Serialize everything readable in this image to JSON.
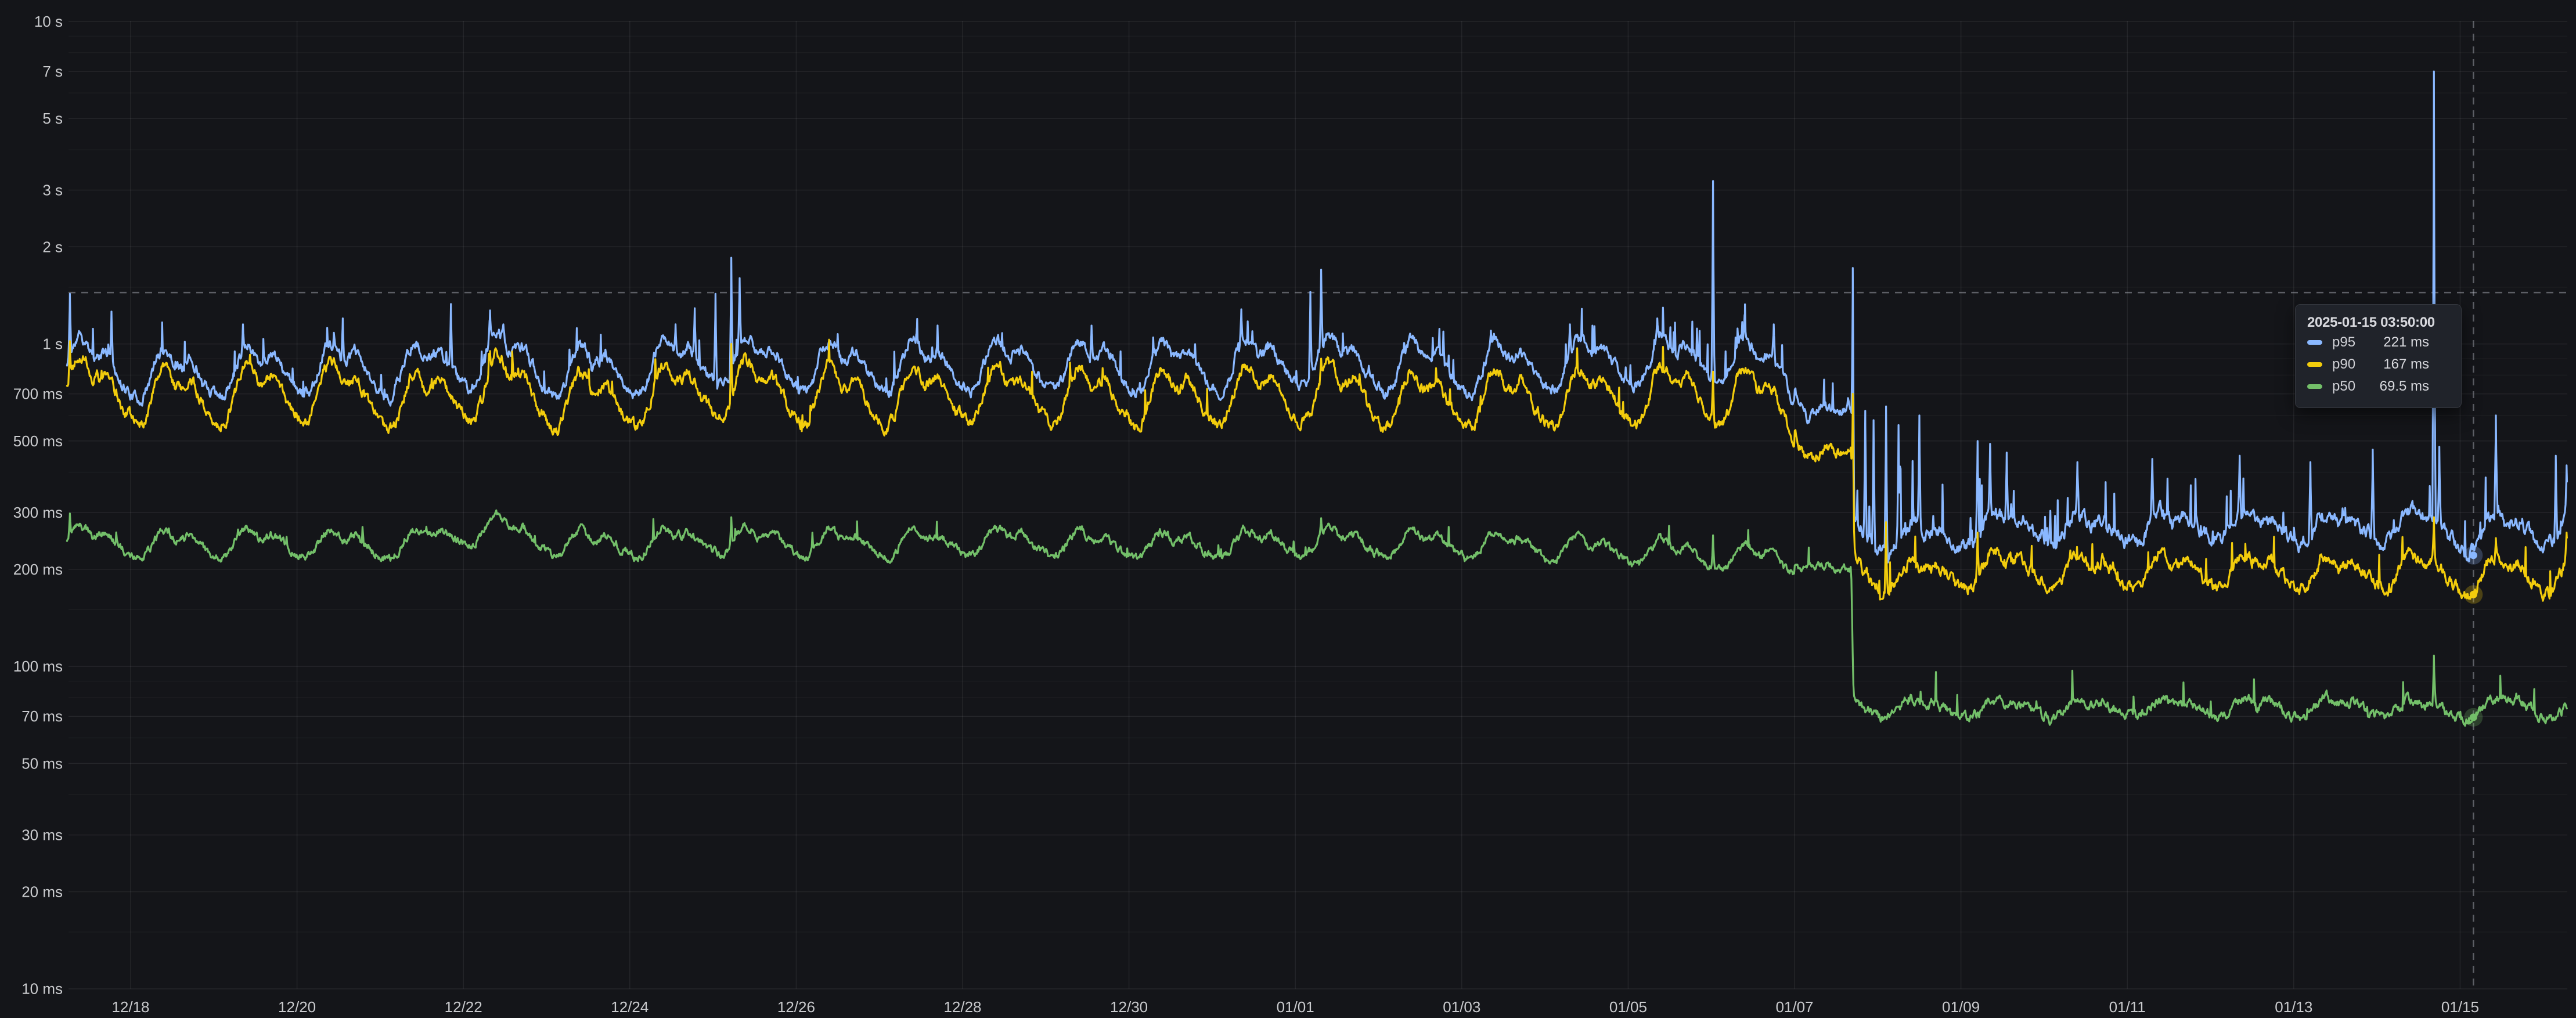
{
  "meta": {
    "app": "grafana-time-series-panel",
    "theme": "dark",
    "panel_kind": "latency-percentiles-log-chart"
  },
  "colors": {
    "background": "#141519",
    "grid_major": "rgba(204,204,220,0.085)",
    "grid_minor": "rgba(204,204,220,0.045)",
    "axis_text": "#C9CACD",
    "crosshair": "rgba(200,205,215,0.40)",
    "tooltip_bg": "#20232A",
    "tooltip_border": "#34373E",
    "tooltip_text": "#D6D7DC"
  },
  "tooltip": {
    "date": "2025-01-15 03:50:00",
    "rows": [
      {
        "label": "p95",
        "value": "221 ms",
        "color": "#8AB8FF"
      },
      {
        "label": "p90",
        "value": "167 ms",
        "color": "#F2CC0C"
      },
      {
        "label": "p50",
        "value": "69.5 ms",
        "color": "#73BF69"
      }
    ]
  },
  "chart_data": {
    "type": "line",
    "title": "",
    "xlabel": "",
    "ylabel": "",
    "x_axis": {
      "unit": "date",
      "epoch_label": "2024-12-17",
      "range_days": [
        0.235,
        30.29
      ],
      "ticks": [
        {
          "label": "12/18",
          "day": 1
        },
        {
          "label": "12/20",
          "day": 3
        },
        {
          "label": "12/22",
          "day": 5
        },
        {
          "label": "12/24",
          "day": 7
        },
        {
          "label": "12/26",
          "day": 9
        },
        {
          "label": "12/28",
          "day": 11
        },
        {
          "label": "12/30",
          "day": 13
        },
        {
          "label": "01/01",
          "day": 15
        },
        {
          "label": "01/03",
          "day": 17
        },
        {
          "label": "01/05",
          "day": 19
        },
        {
          "label": "01/07",
          "day": 21
        },
        {
          "label": "01/09",
          "day": 23
        },
        {
          "label": "01/11",
          "day": 25
        },
        {
          "label": "01/13",
          "day": 27
        },
        {
          "label": "01/15",
          "day": 29
        }
      ]
    },
    "y_axis": {
      "scale": "log10",
      "unit": "ms",
      "range_ms": [
        10,
        10000
      ],
      "major_ticks": [
        {
          "label": "10 s",
          "ms": 10000
        },
        {
          "label": "7 s",
          "ms": 7000
        },
        {
          "label": "5 s",
          "ms": 5000
        },
        {
          "label": "3 s",
          "ms": 3000
        },
        {
          "label": "2 s",
          "ms": 2000
        },
        {
          "label": "1 s",
          "ms": 1000
        },
        {
          "label": "700 ms",
          "ms": 700
        },
        {
          "label": "500 ms",
          "ms": 500
        },
        {
          "label": "300 ms",
          "ms": 300
        },
        {
          "label": "200 ms",
          "ms": 200
        },
        {
          "label": "100 ms",
          "ms": 100
        },
        {
          "label": "70 ms",
          "ms": 70
        },
        {
          "label": "50 ms",
          "ms": 50
        },
        {
          "label": "30 ms",
          "ms": 30
        },
        {
          "label": "20 ms",
          "ms": 20
        },
        {
          "label": "10 ms",
          "ms": 10
        }
      ],
      "minor_ticks_ms": [
        9000,
        8000,
        6000,
        4000,
        1500,
        900,
        800,
        600,
        400,
        150,
        90,
        80,
        60,
        40,
        15
      ]
    },
    "transition_day": 21.7,
    "flatten_window": [
      21.0,
      21.7,
      0.3
    ],
    "sampling_step_day": 0.008,
    "daily_shape": [
      [
        0.0,
        -0.055
      ],
      [
        0.06,
        -0.072
      ],
      [
        0.14,
        -0.068
      ],
      [
        0.22,
        -0.025
      ],
      [
        0.3,
        0.045
      ],
      [
        0.38,
        0.088
      ],
      [
        0.46,
        0.075
      ],
      [
        0.54,
        0.03
      ],
      [
        0.62,
        0.035
      ],
      [
        0.7,
        0.058
      ],
      [
        0.78,
        0.028
      ],
      [
        0.86,
        -0.01
      ],
      [
        0.93,
        -0.038
      ],
      [
        1.0,
        -0.055
      ]
    ],
    "crosshair": {
      "day": 29.1597,
      "value_ms": 1443
    },
    "tooltip_point": {
      "day": 29.1597,
      "values_ms": [
        221,
        167,
        69.5
      ]
    },
    "series": [
      {
        "name": "p95",
        "color": "#8AB8FF",
        "seed": 11,
        "daily_amp_pre": 1.0,
        "daily_amp_post": 0.62,
        "noise_pre": 0.013,
        "noise_post": 0.016,
        "envelope": [
          [
            0.23,
            880
          ],
          [
            0.9,
            800
          ],
          [
            1.5,
            790
          ],
          [
            2.5,
            820
          ],
          [
            3.5,
            830
          ],
          [
            4.3,
            800
          ],
          [
            5.0,
            860
          ],
          [
            5.5,
            900
          ],
          [
            6.2,
            800
          ],
          [
            7.0,
            820
          ],
          [
            8.0,
            880
          ],
          [
            8.6,
            860
          ],
          [
            9.5,
            830
          ],
          [
            10.5,
            840
          ],
          [
            11.5,
            850
          ],
          [
            12.5,
            840
          ],
          [
            13.5,
            830
          ],
          [
            14.5,
            850
          ],
          [
            15.3,
            880
          ],
          [
            16.0,
            840
          ],
          [
            17.0,
            830
          ],
          [
            18.0,
            840
          ],
          [
            19.0,
            860
          ],
          [
            19.8,
            880
          ],
          [
            20.4,
            870
          ],
          [
            20.9,
            800
          ],
          [
            21.15,
            620
          ],
          [
            21.45,
            600
          ],
          [
            21.68,
            615
          ],
          [
            21.71,
            280
          ],
          [
            22.0,
            250
          ],
          [
            22.6,
            242
          ],
          [
            23.1,
            262
          ],
          [
            23.6,
            272
          ],
          [
            24.1,
            268
          ],
          [
            24.6,
            262
          ],
          [
            25.1,
            265
          ],
          [
            25.6,
            272
          ],
          [
            26.1,
            275
          ],
          [
            26.6,
            270
          ],
          [
            27.1,
            268
          ],
          [
            27.6,
            266
          ],
          [
            28.1,
            270
          ],
          [
            28.6,
            272
          ],
          [
            29.1,
            252
          ],
          [
            29.6,
            268
          ],
          [
            30.0,
            255
          ],
          [
            30.29,
            290
          ]
        ],
        "spikes": [
          [
            0.27,
            1430
          ],
          [
            0.77,
            1260
          ],
          [
            2.35,
            1150
          ],
          [
            3.55,
            1200
          ],
          [
            4.85,
            1330
          ],
          [
            5.32,
            1270
          ],
          [
            5.48,
            1150
          ],
          [
            7.55,
            1150
          ],
          [
            7.78,
            1290
          ],
          [
            8.03,
            1430
          ],
          [
            8.22,
            1850
          ],
          [
            8.32,
            1600
          ],
          [
            10.45,
            1120
          ],
          [
            12.55,
            1140
          ],
          [
            14.35,
            1280
          ],
          [
            15.18,
            1450
          ],
          [
            15.31,
            1700
          ],
          [
            17.35,
            1100
          ],
          [
            18.3,
            1150
          ],
          [
            19.35,
            1200
          ],
          [
            20.02,
            3200
          ],
          [
            20.4,
            1230
          ],
          [
            20.75,
            1150
          ],
          [
            21.7,
            1720
          ],
          [
            21.85,
            620
          ],
          [
            21.95,
            580
          ],
          [
            22.1,
            640
          ],
          [
            22.25,
            560
          ],
          [
            22.5,
            600
          ],
          [
            23.2,
            500
          ],
          [
            23.35,
            490
          ],
          [
            23.55,
            460
          ],
          [
            24.4,
            430
          ],
          [
            25.3,
            440
          ],
          [
            26.35,
            450
          ],
          [
            27.2,
            430
          ],
          [
            27.95,
            470
          ],
          [
            28.685,
            7000
          ],
          [
            28.75,
            480
          ],
          [
            29.43,
            600
          ],
          [
            30.15,
            450
          ],
          [
            30.28,
            420
          ]
        ],
        "spike_regions": [
          [
            0.23,
            19.0,
            0.03,
            0.1
          ],
          [
            19.0,
            21.7,
            0.055,
            0.13
          ],
          [
            21.7,
            23.8,
            0.1,
            0.22
          ],
          [
            23.8,
            30.3,
            0.045,
            0.15
          ]
        ]
      },
      {
        "name": "p90",
        "color": "#F2CC0C",
        "seed": 22,
        "daily_amp_pre": 1.15,
        "daily_amp_post": 0.72,
        "noise_pre": 0.013,
        "noise_post": 0.014,
        "envelope": [
          [
            0.23,
            760
          ],
          [
            0.9,
            690
          ],
          [
            1.5,
            670
          ],
          [
            2.5,
            690
          ],
          [
            3.5,
            700
          ],
          [
            4.3,
            640
          ],
          [
            5.0,
            700
          ],
          [
            5.5,
            730
          ],
          [
            6.2,
            650
          ],
          [
            7.0,
            660
          ],
          [
            8.0,
            720
          ],
          [
            8.6,
            700
          ],
          [
            9.5,
            670
          ],
          [
            10.5,
            680
          ],
          [
            11.5,
            690
          ],
          [
            12.5,
            680
          ],
          [
            13.5,
            665
          ],
          [
            14.5,
            680
          ],
          [
            15.3,
            700
          ],
          [
            16.0,
            670
          ],
          [
            17.0,
            660
          ],
          [
            18.0,
            665
          ],
          [
            19.0,
            680
          ],
          [
            19.8,
            690
          ],
          [
            20.4,
            680
          ],
          [
            20.9,
            620
          ],
          [
            21.15,
            465
          ],
          [
            21.45,
            440
          ],
          [
            21.68,
            450
          ],
          [
            21.71,
            205
          ],
          [
            22.0,
            192
          ],
          [
            22.6,
            186
          ],
          [
            23.1,
            196
          ],
          [
            23.6,
            200
          ],
          [
            24.1,
            197
          ],
          [
            25.1,
            195
          ],
          [
            26.1,
            197
          ],
          [
            27.1,
            194
          ],
          [
            28.1,
            196
          ],
          [
            28.6,
            197
          ],
          [
            29.1,
            185
          ],
          [
            29.6,
            193
          ],
          [
            30.0,
            184
          ],
          [
            30.29,
            215
          ]
        ],
        "spikes": [
          [
            0.27,
            1020
          ],
          [
            5.32,
            950
          ],
          [
            8.22,
            1000
          ],
          [
            15.31,
            900
          ],
          [
            20.02,
            820
          ],
          [
            21.7,
            700
          ],
          [
            22.1,
            280
          ],
          [
            23.2,
            260
          ],
          [
            28.685,
            290
          ],
          [
            29.43,
            250
          ],
          [
            30.28,
            260
          ]
        ],
        "spike_regions": [
          [
            0.23,
            21.7,
            0.015,
            0.08
          ],
          [
            21.7,
            30.3,
            0.035,
            0.1
          ]
        ]
      },
      {
        "name": "p50",
        "color": "#73BF69",
        "seed": 33,
        "daily_amp_pre": 0.55,
        "daily_amp_post": 0.38,
        "noise_pre": 0.009,
        "noise_post": 0.011,
        "envelope": [
          [
            0.23,
            248
          ],
          [
            0.9,
            238
          ],
          [
            1.5,
            236
          ],
          [
            2.5,
            240
          ],
          [
            3.5,
            238
          ],
          [
            4.3,
            234
          ],
          [
            5.0,
            258
          ],
          [
            5.35,
            270
          ],
          [
            5.8,
            248
          ],
          [
            6.2,
            240
          ],
          [
            7.0,
            238
          ],
          [
            8.0,
            246
          ],
          [
            8.6,
            242
          ],
          [
            9.5,
            238
          ],
          [
            10.5,
            240
          ],
          [
            11.5,
            242
          ],
          [
            12.5,
            238
          ],
          [
            13.5,
            235
          ],
          [
            14.5,
            238
          ],
          [
            15.3,
            242
          ],
          [
            16.0,
            240
          ],
          [
            17.0,
            236
          ],
          [
            18.0,
            232
          ],
          [
            19.0,
            226
          ],
          [
            19.8,
            220
          ],
          [
            20.4,
            214
          ],
          [
            20.9,
            208
          ],
          [
            21.15,
            204
          ],
          [
            21.45,
            200
          ],
          [
            21.68,
            196
          ],
          [
            21.71,
            74.5
          ],
          [
            22.3,
            73.5
          ],
          [
            23.1,
            73.5
          ],
          [
            24.1,
            73
          ],
          [
            25.1,
            74
          ],
          [
            26.1,
            74.5
          ],
          [
            27.1,
            74
          ],
          [
            28.1,
            74.5
          ],
          [
            29.1,
            71.5
          ],
          [
            29.6,
            76.5
          ],
          [
            30.0,
            72.5
          ],
          [
            30.29,
            74
          ]
        ],
        "spikes": [
          [
            0.27,
            298
          ],
          [
            8.22,
            290
          ],
          [
            15.31,
            288
          ],
          [
            20.02,
            255
          ],
          [
            28.685,
            108
          ]
        ],
        "spike_regions": [
          [
            0.23,
            21.7,
            0.012,
            0.06
          ],
          [
            21.7,
            30.3,
            0.025,
            0.09
          ]
        ]
      }
    ]
  }
}
